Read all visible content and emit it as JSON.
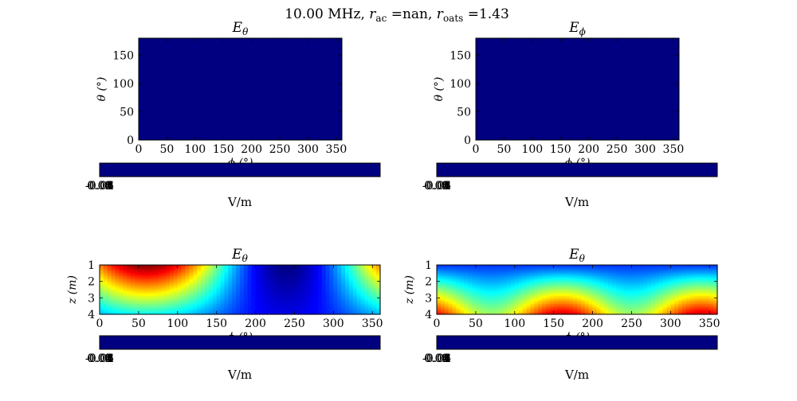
{
  "figure": {
    "suptitle": {
      "freq": "10.00 MHz,",
      "r": "r",
      "ac_sub": "ac",
      "ac_val": " =nan, ",
      "oats_sub": "oats",
      "oats_val": " =1.43"
    }
  },
  "colors": {
    "cmap": "jet",
    "jet_stops": [
      "#00007f",
      "#0000ff",
      "#007fff",
      "#00ffff",
      "#7fff7f",
      "#ffff00",
      "#ff7f00",
      "#ff0000",
      "#7f0000"
    ],
    "axis": "#000000",
    "background": "#ffffff"
  },
  "chart_data": [
    {
      "type": "heatmap",
      "title_base": "E",
      "title_sub": "θ",
      "xlabel": "ϕ (°)",
      "ylabel": "θ (°)",
      "xlim": [
        0,
        360
      ],
      "ylim": [
        180,
        0
      ],
      "xticks": [
        "0",
        "50",
        "100",
        "150",
        "200",
        "250",
        "300",
        "350"
      ],
      "yticks": [
        "0",
        "50",
        "100",
        "150"
      ],
      "field": "uniform-min",
      "colorbar": {
        "ticklabels": [
          "-0.06",
          "-0.04",
          "-0.02",
          "0.00",
          "0.02",
          "0.04",
          "0.06"
        ],
        "label": "V/m"
      }
    },
    {
      "type": "heatmap",
      "title_base": "E",
      "title_sub": "ϕ",
      "xlabel": "ϕ (°)",
      "ylabel": "θ (°)",
      "xlim": [
        0,
        360
      ],
      "ylim": [
        180,
        0
      ],
      "xticks": [
        "0",
        "50",
        "100",
        "150",
        "200",
        "250",
        "300",
        "350"
      ],
      "yticks": [
        "0",
        "50",
        "100",
        "150"
      ],
      "field": "uniform-min",
      "colorbar": {
        "ticklabels": [
          "-0.06",
          "-0.04",
          "-0.02",
          "0.00",
          "0.02",
          "0.04",
          "0.06"
        ],
        "label": "V/m"
      }
    },
    {
      "type": "heatmap",
      "title_base": "E",
      "title_sub": "θ",
      "xlabel": "ϕ (°)",
      "ylabel": "z (m)",
      "xlim": [
        0,
        360
      ],
      "ylim": [
        1,
        4
      ],
      "xticks": [
        "0",
        "50",
        "100",
        "150",
        "200",
        "250",
        "300",
        "350"
      ],
      "yticks": [
        "1",
        "2",
        "3",
        "4"
      ],
      "field": "low-z-lobes",
      "colorbar": {
        "ticklabels": [
          "-0.06",
          "-0.04",
          "-0.02",
          "0.00",
          "0.02",
          "0.04",
          "0.06"
        ],
        "label": "V/m"
      }
    },
    {
      "type": "heatmap",
      "title_base": "E",
      "title_sub": "θ",
      "xlabel": "ϕ (°)",
      "ylabel": "z (m)",
      "xlim": [
        0,
        360
      ],
      "ylim": [
        1,
        4
      ],
      "xticks": [
        "0",
        "50",
        "100",
        "150",
        "200",
        "250",
        "300",
        "350"
      ],
      "yticks": [
        "1",
        "2",
        "3",
        "4"
      ],
      "field": "high-z-lobes",
      "colorbar": {
        "ticklabels": [
          "-0.06",
          "-0.04",
          "-0.02",
          "0.00",
          "0.02",
          "0.04",
          "0.06"
        ],
        "label": "V/m"
      }
    }
  ]
}
